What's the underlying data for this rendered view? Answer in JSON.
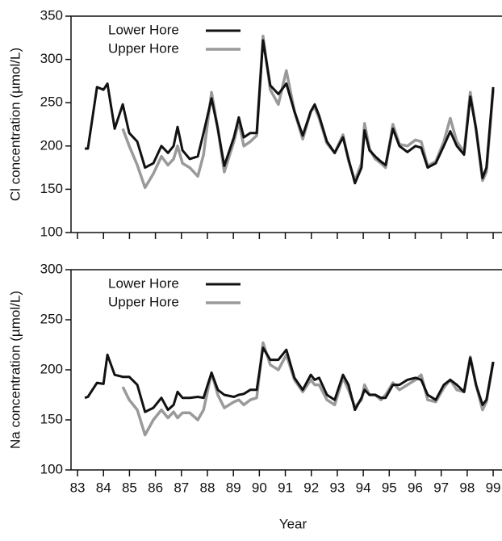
{
  "chart_data": [
    {
      "type": "line",
      "ylabel": "Cl concentration (µmol/L)",
      "x": [
        83.28,
        83.4,
        83.75,
        84.0,
        84.15,
        84.43,
        84.74,
        84.99,
        85.3,
        85.6,
        85.92,
        86.23,
        86.48,
        86.7,
        86.85,
        87.04,
        87.32,
        87.63,
        87.85,
        88.16,
        88.4,
        88.65,
        89.02,
        89.21,
        89.4,
        89.65,
        89.9,
        90.14,
        90.42,
        90.73,
        91.04,
        91.35,
        91.67,
        91.98,
        92.13,
        92.3,
        92.6,
        92.9,
        93.22,
        93.43,
        93.68,
        93.93,
        94.05,
        94.24,
        94.46,
        94.68,
        94.86,
        95.14,
        95.39,
        95.7,
        96.01,
        96.23,
        96.48,
        96.79,
        97.1,
        97.35,
        97.6,
        97.88,
        98.12,
        98.34,
        98.59,
        98.74,
        99.0
      ],
      "series": [
        {
          "name": "Lower Hore",
          "color": "#111111",
          "values": [
            197,
            197,
            268,
            265,
            272,
            220,
            248,
            215,
            205,
            175,
            180,
            200,
            192,
            200,
            222,
            195,
            185,
            188,
            215,
            255,
            220,
            177,
            210,
            233,
            210,
            215,
            215,
            322,
            270,
            260,
            272,
            240,
            212,
            240,
            248,
            235,
            205,
            192,
            210,
            185,
            157,
            175,
            218,
            195,
            188,
            182,
            178,
            220,
            200,
            193,
            200,
            198,
            175,
            180,
            200,
            217,
            200,
            190,
            257,
            220,
            163,
            175,
            268
          ]
        },
        {
          "name": "Upper Hore",
          "color": "#9a9a9a",
          "values": [
            null,
            null,
            null,
            null,
            null,
            null,
            220,
            200,
            178,
            152,
            168,
            188,
            178,
            185,
            200,
            180,
            175,
            165,
            190,
            262,
            220,
            170,
            205,
            228,
            200,
            205,
            212,
            327,
            265,
            248,
            287,
            240,
            208,
            240,
            245,
            232,
            203,
            192,
            213,
            183,
            160,
            180,
            226,
            197,
            185,
            180,
            175,
            225,
            202,
            200,
            207,
            205,
            177,
            182,
            205,
            232,
            205,
            193,
            262,
            220,
            160,
            170,
            265
          ]
        }
      ],
      "xlim": [
        82.75,
        99.34
      ],
      "ylim": [
        100,
        350
      ],
      "yticks": [
        100,
        150,
        200,
        250,
        300,
        350
      ],
      "legend": "upper left"
    },
    {
      "type": "line",
      "ylabel": "Na concentration (µmol/L)",
      "xlabel": "Year",
      "x": [
        83.28,
        83.4,
        83.75,
        84.0,
        84.15,
        84.43,
        84.74,
        84.99,
        85.3,
        85.6,
        85.92,
        86.23,
        86.48,
        86.7,
        86.85,
        87.04,
        87.32,
        87.63,
        87.85,
        88.16,
        88.4,
        88.65,
        89.02,
        89.21,
        89.4,
        89.65,
        89.9,
        90.14,
        90.42,
        90.73,
        91.04,
        91.35,
        91.67,
        91.98,
        92.13,
        92.3,
        92.6,
        92.9,
        93.22,
        93.43,
        93.68,
        93.93,
        94.05,
        94.24,
        94.46,
        94.68,
        94.86,
        95.14,
        95.39,
        95.7,
        96.01,
        96.23,
        96.48,
        96.79,
        97.1,
        97.35,
        97.6,
        97.88,
        98.12,
        98.34,
        98.59,
        98.74,
        99.0
      ],
      "series": [
        {
          "name": "Lower Hore",
          "color": "#111111",
          "values": [
            172,
            173,
            187,
            186,
            215,
            195,
            193,
            193,
            185,
            158,
            162,
            172,
            160,
            165,
            178,
            172,
            172,
            173,
            172,
            197,
            180,
            175,
            173,
            175,
            176,
            180,
            180,
            222,
            210,
            210,
            220,
            192,
            180,
            195,
            190,
            192,
            175,
            170,
            195,
            185,
            160,
            172,
            180,
            175,
            175,
            172,
            172,
            185,
            185,
            190,
            192,
            190,
            175,
            170,
            185,
            190,
            185,
            178,
            212,
            185,
            165,
            170,
            208
          ]
        },
        {
          "name": "Upper Hore",
          "color": "#9a9a9a",
          "values": [
            null,
            null,
            null,
            null,
            null,
            null,
            183,
            170,
            160,
            135,
            150,
            160,
            152,
            158,
            152,
            157,
            157,
            150,
            160,
            197,
            175,
            162,
            168,
            170,
            165,
            170,
            172,
            227,
            205,
            200,
            215,
            190,
            178,
            190,
            185,
            185,
            170,
            165,
            192,
            180,
            163,
            170,
            185,
            175,
            175,
            170,
            175,
            187,
            180,
            185,
            190,
            195,
            170,
            168,
            182,
            190,
            180,
            178,
            213,
            185,
            160,
            168,
            208
          ]
        }
      ],
      "xlim": [
        82.75,
        99.34
      ],
      "xticks": [
        83,
        84,
        85,
        86,
        87,
        88,
        89,
        90,
        91,
        92,
        93,
        94,
        95,
        96,
        97,
        98,
        99
      ],
      "ylim": [
        100,
        300
      ],
      "yticks": [
        100,
        150,
        200,
        250,
        300
      ],
      "legend": "upper left"
    }
  ]
}
